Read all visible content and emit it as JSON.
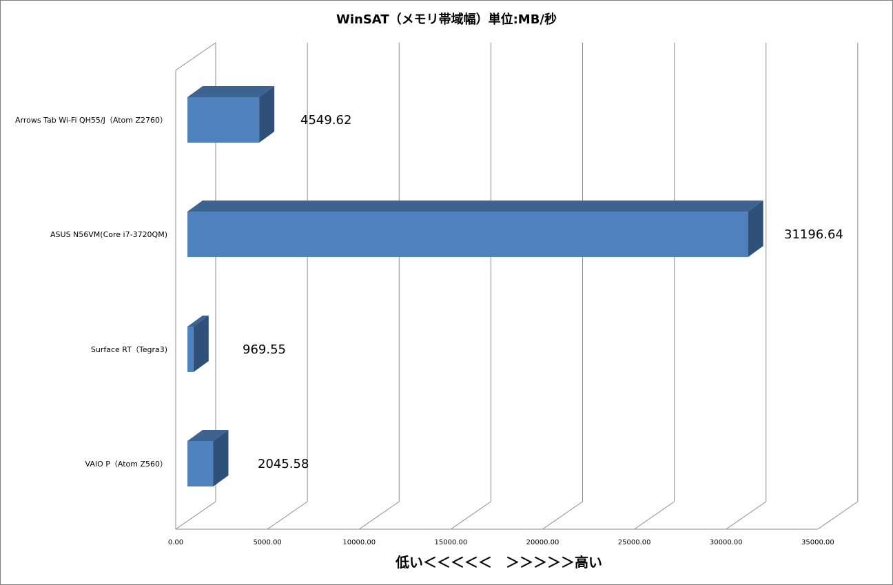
{
  "chart_data": {
    "type": "bar",
    "orientation": "horizontal",
    "three_d": true,
    "title": "WinSAT（メモリ帯域幅）単位:MB/秒",
    "xlabel": "低い＜＜＜＜＜　＞＞＞＞＞高い",
    "ylabel": "",
    "xlim": [
      0,
      35000
    ],
    "x_ticks": [
      "0.00",
      "5000.00",
      "10000.00",
      "15000.00",
      "20000.00",
      "25000.00",
      "30000.00",
      "35000.00"
    ],
    "categories": [
      "Arrows Tab Wi-Fi QH55/J（Atom Z2760）",
      "ASUS N56VM(Core i7-3720QM)",
      "Surface RT（Tegra3)",
      "VAIO P（Atom  Z560）"
    ],
    "values": [
      4549.62,
      31196.64,
      969.55,
      2045.58
    ],
    "data_labels": [
      "4549.62",
      "31196.64",
      "969.55",
      "2045.58"
    ],
    "grid": true,
    "legend": "none",
    "colors": {
      "bar_front": "#4F81BD",
      "bar_top": "#3D6490",
      "bar_side": "#2F5078",
      "grid": "#8C8C8C"
    }
  }
}
